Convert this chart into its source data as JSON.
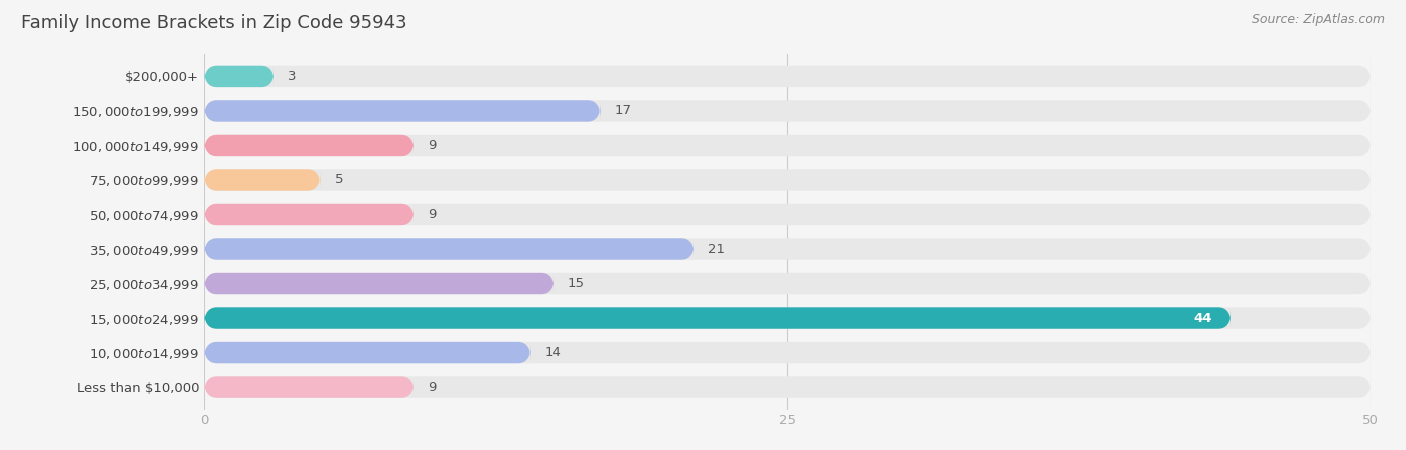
{
  "title": "Family Income Brackets in Zip Code 95943",
  "source": "Source: ZipAtlas.com",
  "categories": [
    "Less than $10,000",
    "$10,000 to $14,999",
    "$15,000 to $24,999",
    "$25,000 to $34,999",
    "$35,000 to $49,999",
    "$50,000 to $74,999",
    "$75,000 to $99,999",
    "$100,000 to $149,999",
    "$150,000 to $199,999",
    "$200,000+"
  ],
  "values": [
    3,
    17,
    9,
    5,
    9,
    21,
    15,
    44,
    14,
    9
  ],
  "bar_colors": [
    "#6dcdc8",
    "#a8b8e8",
    "#f2a0b0",
    "#f8c89a",
    "#f2a8b8",
    "#a8b8e8",
    "#c0a8d8",
    "#29adb0",
    "#a8b8e8",
    "#f4b8c8"
  ],
  "bar_bg_color": "#e8e8e8",
  "background_color": "#f5f5f5",
  "xlim": [
    0,
    50
  ],
  "xticks": [
    0,
    25,
    50
  ],
  "title_fontsize": 13,
  "label_fontsize": 9.5,
  "value_fontsize": 9.5,
  "source_fontsize": 9,
  "title_color": "#444444",
  "label_color": "#444444",
  "value_color_dark": "#555555",
  "value_color_white": "#ffffff",
  "tick_color": "#aaaaaa",
  "value_inside_bar": 44
}
